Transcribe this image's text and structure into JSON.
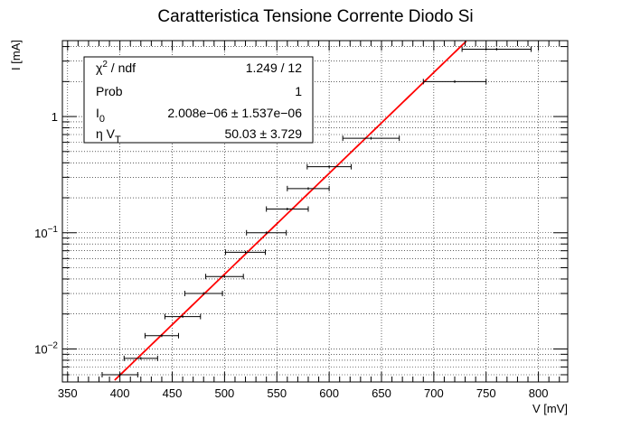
{
  "chart_data": {
    "type": "scatter",
    "title": "Caratteristica Tensione Corrente Diodo Si",
    "xlabel": "V [mV]",
    "ylabel": "I [mA]",
    "xlim": [
      345,
      828
    ],
    "ylim": [
      0.0052,
      4.5
    ],
    "y_scale": "log",
    "grid": true,
    "x_ticks": [
      350,
      400,
      450,
      500,
      550,
      600,
      650,
      700,
      750,
      800
    ],
    "y_ticks": [
      {
        "value": 0.01,
        "base": "10",
        "exp": "−2"
      },
      {
        "value": 0.1,
        "base": "10",
        "exp": "−1"
      },
      {
        "value": 1,
        "base": "1",
        "exp": ""
      }
    ],
    "points": [
      {
        "x": 400,
        "y": 0.006,
        "xerr": 17
      },
      {
        "x": 420,
        "y": 0.0083,
        "xerr": 16
      },
      {
        "x": 440,
        "y": 0.013,
        "xerr": 16
      },
      {
        "x": 460,
        "y": 0.019,
        "xerr": 17
      },
      {
        "x": 480,
        "y": 0.03,
        "xerr": 18
      },
      {
        "x": 500,
        "y": 0.042,
        "xerr": 18
      },
      {
        "x": 520,
        "y": 0.068,
        "xerr": 19
      },
      {
        "x": 540,
        "y": 0.1,
        "xerr": 19
      },
      {
        "x": 560,
        "y": 0.16,
        "xerr": 20
      },
      {
        "x": 580,
        "y": 0.24,
        "xerr": 20
      },
      {
        "x": 600,
        "y": 0.37,
        "xerr": 21
      },
      {
        "x": 640,
        "y": 0.65,
        "xerr": 27
      },
      {
        "x": 720,
        "y": 2.0,
        "xerr": 30
      },
      {
        "x": 760,
        "y": 3.8,
        "xerr": 33
      }
    ],
    "fit": {
      "color": "#ff0000",
      "I0": 2.008e-06,
      "etaVT": 50.03,
      "x_range": [
        345,
        750
      ]
    },
    "stats_box": {
      "rows": [
        {
          "label": "χ",
          "label_sup": "2",
          "label_rest": " / ndf",
          "value": "1.249 / 12"
        },
        {
          "label": "Prob",
          "label_sup": "",
          "label_rest": "",
          "value": "1"
        },
        {
          "label": "I",
          "label_sub": "0",
          "value": "2.008e−06 ± 1.537e−06"
        },
        {
          "label": "η V",
          "label_sub": "T",
          "value": "50.03 ± 3.729"
        }
      ]
    }
  }
}
